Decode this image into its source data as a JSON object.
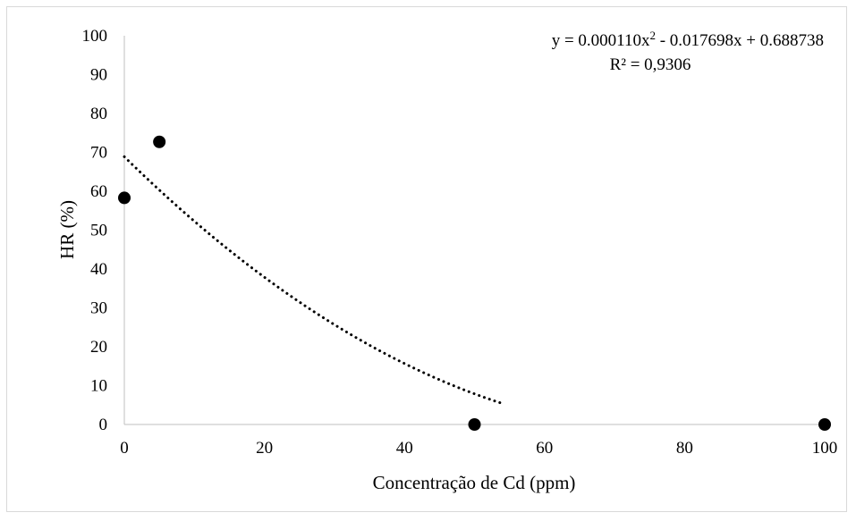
{
  "chart_data": {
    "type": "scatter",
    "title": "",
    "xlabel": "Concentração de Cd (ppm)",
    "ylabel": "HR (%)",
    "xlim": [
      0,
      100
    ],
    "ylim": [
      0,
      100
    ],
    "xticks": [
      0,
      20,
      40,
      60,
      80,
      100
    ],
    "yticks": [
      0,
      10,
      20,
      30,
      40,
      50,
      60,
      70,
      80,
      90,
      100
    ],
    "grid": false,
    "legend": "none",
    "series": [
      {
        "x": [
          0,
          5,
          50,
          100
        ],
        "y": [
          58.3,
          72.7,
          0,
          0
        ],
        "marker": "filled-circle",
        "color": "#000000"
      }
    ],
    "trendline": {
      "type": "polynomial",
      "order": 2,
      "style": "dotted",
      "color": "#000000",
      "coefficients": {
        "a": 0.00011,
        "b": -0.017698,
        "c": 0.688738
      },
      "x_range": [
        0,
        54
      ],
      "equation_label": {
        "main": "y = 0.000110x",
        "sup": "2",
        "rest": " - 0.017698x + 0.688738"
      },
      "r2_label": "R² = 0,9306"
    }
  }
}
